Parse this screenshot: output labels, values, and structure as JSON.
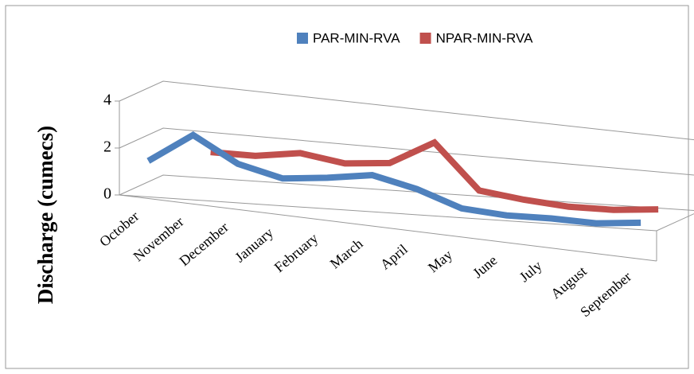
{
  "chart_data": {
    "type": "line",
    "y_label": "Discharge (cumecs)",
    "categories": [
      "October",
      "November",
      "December",
      "January",
      "February",
      "March",
      "April",
      "May",
      "June",
      "July",
      "August",
      "September"
    ],
    "series": [
      {
        "name": "PAR-MIN-RVA",
        "color": "#4f81bd",
        "values": [
          1.4,
          2.7,
          1.6,
          1.1,
          1.3,
          1.6,
          1.1,
          0.3,
          0.1,
          0.1,
          0.0,
          0.2
        ]
      },
      {
        "name": "NPAR-MIN-RVA",
        "color": "#c0504d",
        "values": [
          null,
          1.6,
          1.6,
          1.9,
          1.6,
          1.8,
          3.0,
          0.8,
          0.5,
          0.3,
          0.3,
          0.5
        ]
      }
    ],
    "ylim": [
      0,
      4
    ],
    "yticks": [
      0,
      2,
      4
    ],
    "grid": true,
    "legend": "top"
  }
}
